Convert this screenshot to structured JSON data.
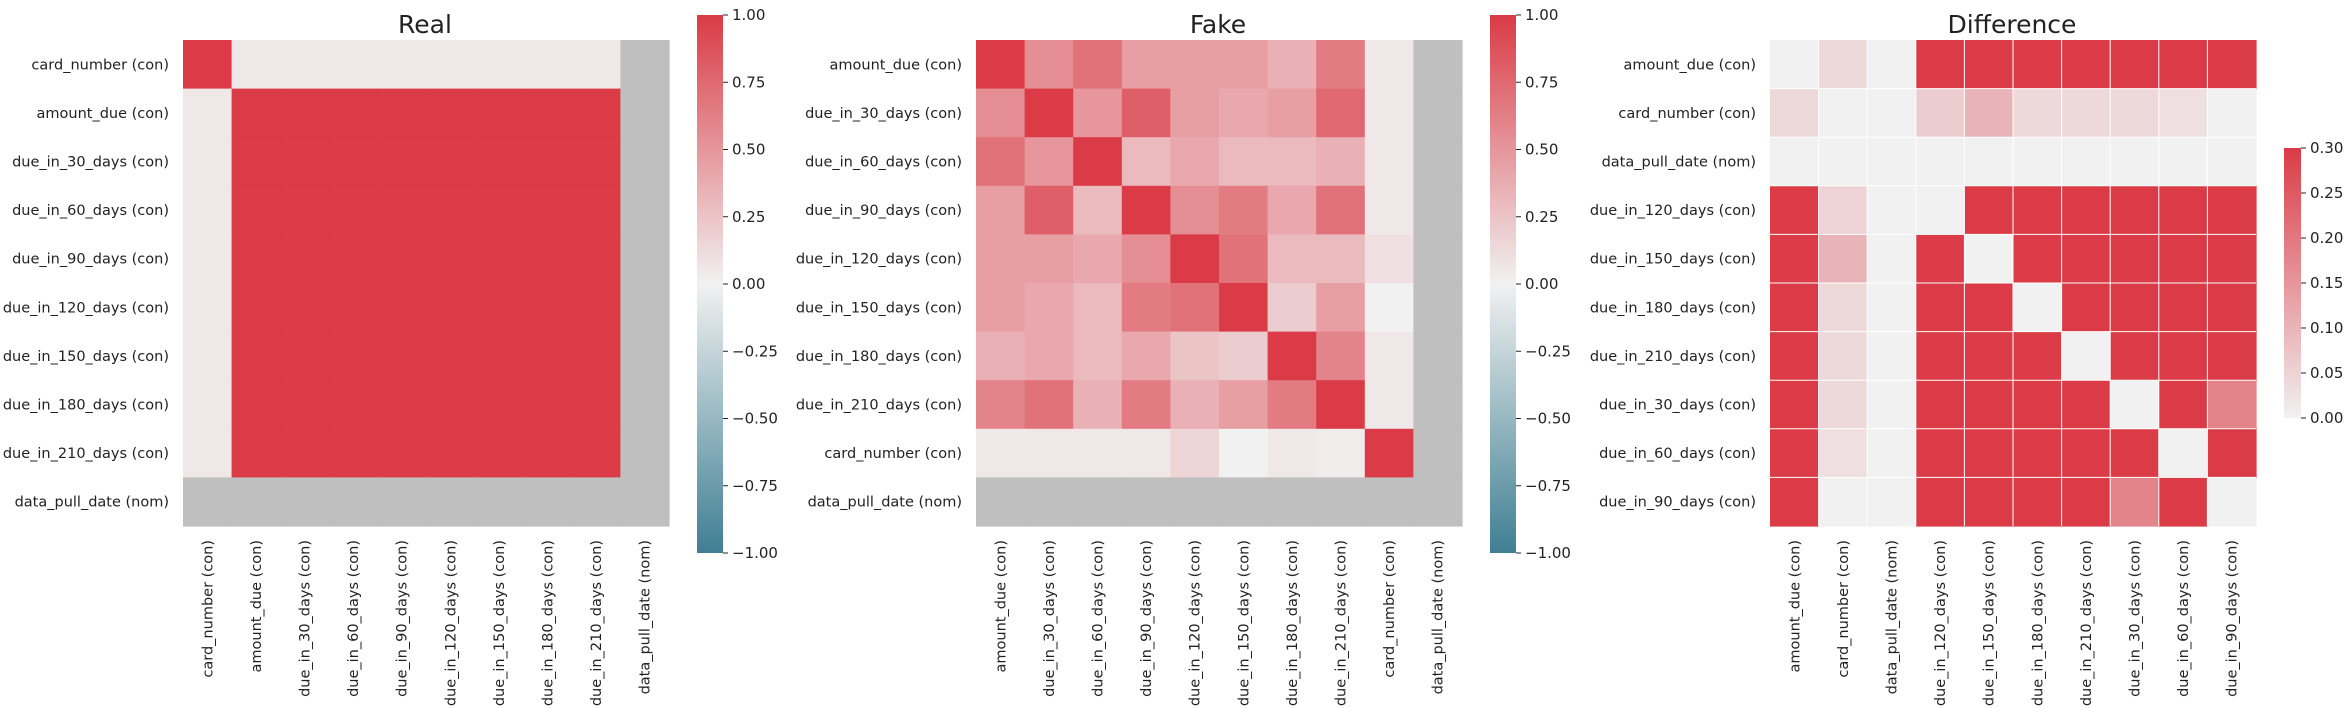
{
  "palette": {
    "positive": "#DA3B46",
    "neutral": "#F1F1F1",
    "negative": "#3F7F93",
    "missing": "#BFBFBF",
    "background": "#FFFFFF",
    "text": "#222222"
  },
  "chart_data": [
    {
      "type": "heatmap",
      "title": "Real",
      "rows": [
        "card_number (con)",
        "amount_due (con)",
        "due_in_30_days (con)",
        "due_in_60_days (con)",
        "due_in_90_days (con)",
        "due_in_120_days (con)",
        "due_in_150_days (con)",
        "due_in_180_days (con)",
        "due_in_210_days (con)",
        "data_pull_date (nom)"
      ],
      "columns": [
        "card_number (con)",
        "amount_due (con)",
        "due_in_30_days (con)",
        "due_in_60_days (con)",
        "due_in_90_days (con)",
        "due_in_120_days (con)",
        "due_in_150_days (con)",
        "due_in_180_days (con)",
        "due_in_210_days (con)",
        "data_pull_date (nom)"
      ],
      "values": [
        [
          1.0,
          0.05,
          0.05,
          0.05,
          0.05,
          0.05,
          0.05,
          0.05,
          0.05,
          null
        ],
        [
          0.05,
          1.0,
          1.0,
          1.0,
          1.0,
          1.0,
          1.0,
          1.0,
          1.0,
          null
        ],
        [
          0.05,
          1.0,
          1.0,
          1.0,
          1.0,
          1.0,
          1.0,
          1.0,
          1.0,
          null
        ],
        [
          0.05,
          1.0,
          1.0,
          1.0,
          1.0,
          1.0,
          1.0,
          1.0,
          1.0,
          null
        ],
        [
          0.05,
          1.0,
          1.0,
          1.0,
          1.0,
          1.0,
          1.0,
          1.0,
          1.0,
          null
        ],
        [
          0.05,
          1.0,
          1.0,
          1.0,
          1.0,
          1.0,
          1.0,
          1.0,
          1.0,
          null
        ],
        [
          0.05,
          1.0,
          1.0,
          1.0,
          1.0,
          1.0,
          1.0,
          1.0,
          1.0,
          null
        ],
        [
          0.05,
          1.0,
          1.0,
          1.0,
          1.0,
          1.0,
          1.0,
          1.0,
          1.0,
          null
        ],
        [
          0.05,
          1.0,
          1.0,
          1.0,
          1.0,
          1.0,
          1.0,
          1.0,
          1.0,
          null
        ],
        [
          null,
          null,
          null,
          null,
          null,
          null,
          null,
          null,
          null,
          null
        ]
      ],
      "vmin": -1.0,
      "vmax": 1.0,
      "colorbar_ticks": [
        1.0,
        0.75,
        0.5,
        0.25,
        0.0,
        -0.25,
        -0.5,
        -0.75,
        -1.0
      ],
      "colorbar_labels": [
        "1.00",
        "0.75",
        "0.50",
        "0.25",
        "0.00",
        "−0.25",
        "−0.50",
        "−0.75",
        "−1.00"
      ],
      "cell_lines": false
    },
    {
      "type": "heatmap",
      "title": "Fake",
      "rows": [
        "amount_due (con)",
        "due_in_30_days (con)",
        "due_in_60_days (con)",
        "due_in_90_days (con)",
        "due_in_120_days (con)",
        "due_in_150_days (con)",
        "due_in_180_days (con)",
        "due_in_210_days (con)",
        "card_number (con)",
        "data_pull_date (nom)"
      ],
      "columns": [
        "amount_due (con)",
        "due_in_30_days (con)",
        "due_in_60_days (con)",
        "due_in_90_days (con)",
        "due_in_120_days (con)",
        "due_in_150_days (con)",
        "due_in_180_days (con)",
        "due_in_210_days (con)",
        "card_number (con)",
        "data_pull_date (nom)"
      ],
      "values": [
        [
          1.0,
          0.55,
          0.7,
          0.45,
          0.45,
          0.45,
          0.35,
          0.65,
          0.05,
          null
        ],
        [
          0.55,
          1.0,
          0.5,
          0.8,
          0.45,
          0.4,
          0.45,
          0.75,
          0.05,
          null
        ],
        [
          0.7,
          0.5,
          1.0,
          0.3,
          0.4,
          0.3,
          0.3,
          0.35,
          0.05,
          null
        ],
        [
          0.45,
          0.8,
          0.3,
          1.0,
          0.55,
          0.65,
          0.4,
          0.7,
          0.05,
          null
        ],
        [
          0.45,
          0.45,
          0.4,
          0.55,
          1.0,
          0.7,
          0.3,
          0.3,
          0.1,
          null
        ],
        [
          0.45,
          0.4,
          0.3,
          0.65,
          0.7,
          1.0,
          0.2,
          0.45,
          0.0,
          null
        ],
        [
          0.35,
          0.4,
          0.3,
          0.4,
          0.25,
          0.2,
          1.0,
          0.6,
          0.05,
          null
        ],
        [
          0.6,
          0.7,
          0.35,
          0.65,
          0.35,
          0.45,
          0.65,
          1.0,
          0.05,
          null
        ],
        [
          0.05,
          0.05,
          0.05,
          0.05,
          0.15,
          0.0,
          0.05,
          0.03,
          1.0,
          null
        ],
        [
          null,
          null,
          null,
          null,
          null,
          null,
          null,
          null,
          null,
          null
        ]
      ],
      "vmin": -1.0,
      "vmax": 1.0,
      "colorbar_ticks": [
        1.0,
        0.75,
        0.5,
        0.25,
        0.0,
        -0.25,
        -0.5,
        -0.75,
        -1.0
      ],
      "colorbar_labels": [
        "1.00",
        "0.75",
        "0.50",
        "0.25",
        "0.00",
        "−0.25",
        "−0.50",
        "−0.75",
        "−1.00"
      ],
      "cell_lines": false
    },
    {
      "type": "heatmap",
      "title": "Difference",
      "rows": [
        "amount_due (con)",
        "card_number (con)",
        "data_pull_date (nom)",
        "due_in_120_days (con)",
        "due_in_150_days (con)",
        "due_in_180_days (con)",
        "due_in_210_days (con)",
        "due_in_30_days (con)",
        "due_in_60_days (con)",
        "due_in_90_days (con)"
      ],
      "columns": [
        "amount_due (con)",
        "card_number (con)",
        "data_pull_date (nom)",
        "due_in_120_days (con)",
        "due_in_150_days (con)",
        "due_in_180_days (con)",
        "due_in_210_days (con)",
        "due_in_30_days (con)",
        "due_in_60_days (con)",
        "due_in_90_days (con)"
      ],
      "values": [
        [
          0.0,
          0.04,
          0.0,
          0.3,
          0.3,
          0.3,
          0.3,
          0.3,
          0.3,
          0.3
        ],
        [
          0.04,
          0.0,
          0.0,
          0.06,
          0.1,
          0.04,
          0.04,
          0.04,
          0.03,
          0.0
        ],
        [
          0.0,
          0.0,
          0.0,
          0.0,
          0.0,
          0.0,
          0.0,
          0.0,
          0.0,
          0.0
        ],
        [
          0.3,
          0.05,
          0.0,
          0.0,
          0.3,
          0.3,
          0.3,
          0.3,
          0.3,
          0.3
        ],
        [
          0.3,
          0.1,
          0.0,
          0.3,
          0.0,
          0.3,
          0.3,
          0.3,
          0.3,
          0.3
        ],
        [
          0.3,
          0.04,
          0.0,
          0.3,
          0.3,
          0.0,
          0.3,
          0.3,
          0.3,
          0.3
        ],
        [
          0.3,
          0.04,
          0.0,
          0.3,
          0.3,
          0.3,
          0.0,
          0.3,
          0.3,
          0.3
        ],
        [
          0.3,
          0.04,
          0.0,
          0.3,
          0.3,
          0.3,
          0.3,
          0.0,
          0.3,
          0.18
        ],
        [
          0.3,
          0.03,
          0.0,
          0.3,
          0.3,
          0.3,
          0.3,
          0.3,
          0.0,
          0.3
        ],
        [
          0.3,
          0.0,
          0.0,
          0.3,
          0.3,
          0.3,
          0.3,
          0.18,
          0.3,
          0.0
        ]
      ],
      "vmin": 0.0,
      "vmax": 0.3,
      "colorbar_ticks": [
        0.3,
        0.25,
        0.2,
        0.15,
        0.1,
        0.05,
        0.0
      ],
      "colorbar_labels": [
        "0.30",
        "0.25",
        "0.20",
        "0.15",
        "0.10",
        "0.05",
        "0.00"
      ],
      "cell_lines": true
    }
  ]
}
